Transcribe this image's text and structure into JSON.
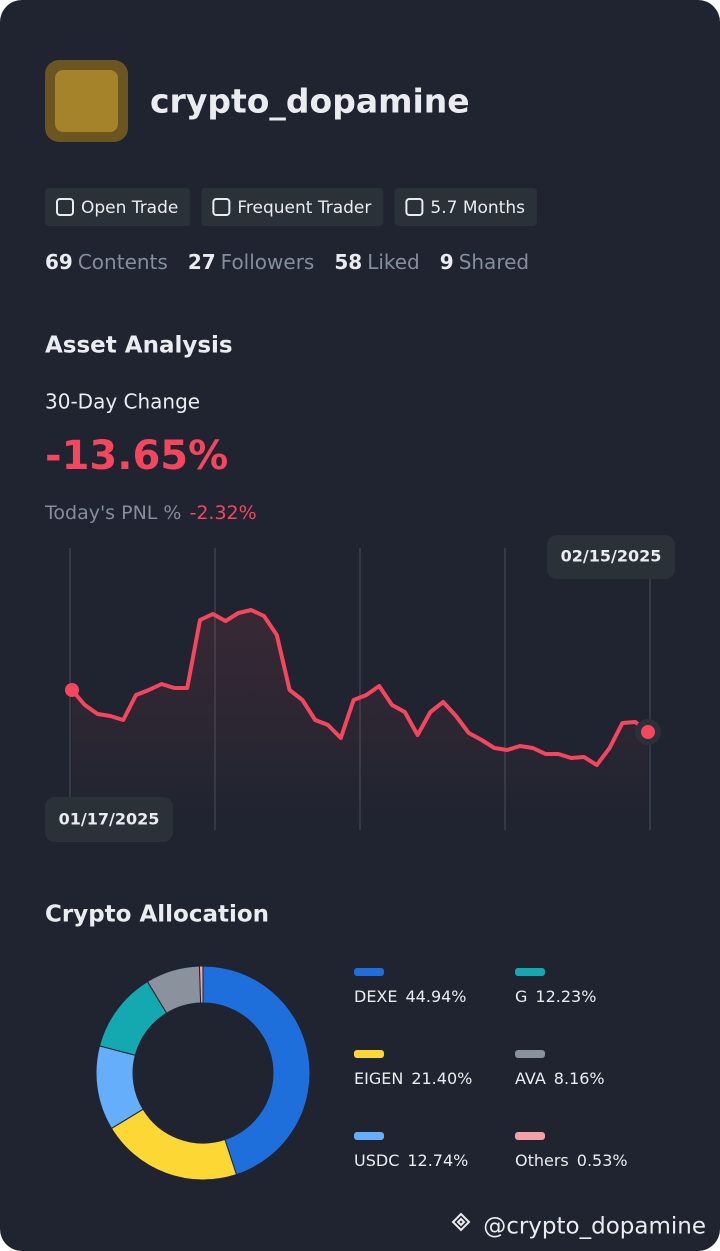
{
  "profile": {
    "username": "crypto_dopamine",
    "badges": [
      "Open Trade",
      "Frequent Trader",
      "5.7 Months"
    ],
    "stats": [
      {
        "value": "69",
        "label": "Contents"
      },
      {
        "value": "27",
        "label": "Followers"
      },
      {
        "value": "58",
        "label": "Liked"
      },
      {
        "value": "9",
        "label": "Shared"
      }
    ]
  },
  "asset_analysis": {
    "title": "Asset Analysis",
    "change_label": "30-Day Change",
    "change_value": "-13.65%",
    "pnl_label": "Today's PNL %",
    "pnl_value": "-2.32%"
  },
  "chart_data": [
    {
      "type": "line",
      "start_date": "01/17/2025",
      "end_date": "02/15/2025",
      "color": "#f6465d",
      "values": [
        80,
        65,
        56,
        54,
        50,
        75,
        80,
        86,
        82,
        82,
        150,
        156,
        149,
        157,
        160,
        154,
        135,
        80,
        70,
        50,
        45,
        32,
        70,
        75,
        84,
        65,
        58,
        35,
        58,
        68,
        54,
        37,
        30,
        22,
        20,
        24,
        22,
        16,
        16,
        12,
        13,
        5,
        22,
        47,
        48,
        38
      ]
    },
    {
      "type": "donut",
      "title": "Crypto Allocation",
      "categories": [
        "DEXE",
        "EIGEN",
        "USDC",
        "G",
        "AVA",
        "Others"
      ],
      "values": [
        44.94,
        21.4,
        12.74,
        12.23,
        8.16,
        0.53
      ],
      "value_labels": [
        "44.94%",
        "21.40%",
        "12.74%",
        "12.23%",
        "8.16%",
        "0.53%"
      ],
      "colors": [
        "#1e6fdc",
        "#fdd835",
        "#64aefc",
        "#14a8b0",
        "#8a929e",
        "#f4a0a8"
      ]
    }
  ],
  "footer": {
    "handle": "@crypto_dopamine"
  }
}
